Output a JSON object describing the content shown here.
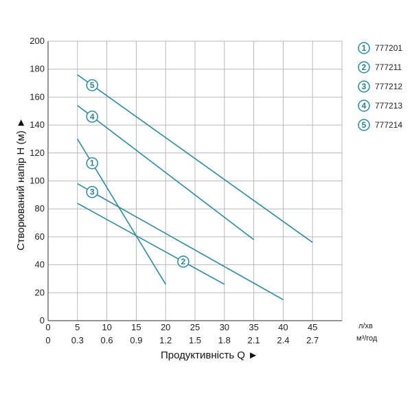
{
  "chart_data": {
    "type": "line",
    "xlabel": "Продуктивність Q ►",
    "ylabel": "Створюваний напір H (м) ►",
    "x_unit_primary": "л/хв",
    "x_unit_secondary": "м³/год",
    "xlim": [
      0,
      50
    ],
    "ylim": [
      0,
      200
    ],
    "x_ticks_primary": [
      "0",
      "5",
      "10",
      "15",
      "20",
      "25",
      "30",
      "35",
      "40",
      "45"
    ],
    "x_ticks_secondary": [
      "0",
      "0.3",
      "0.6",
      "0.9",
      "1.2",
      "1.5",
      "1.8",
      "2.1",
      "2.4",
      "2.7"
    ],
    "y_ticks": [
      "0",
      "20",
      "40",
      "60",
      "80",
      "100",
      "120",
      "140",
      "160",
      "180",
      "200"
    ],
    "grid": true,
    "legend_position": "right",
    "line_color": "#2b8aa0",
    "series": [
      {
        "name": "777201",
        "marker": "1",
        "marker_x": 7.5,
        "points": [
          [
            5,
            130
          ],
          [
            20,
            26
          ]
        ]
      },
      {
        "name": "777211",
        "marker": "2",
        "marker_x": 23,
        "points": [
          [
            5,
            84
          ],
          [
            30,
            26
          ]
        ]
      },
      {
        "name": "777212",
        "marker": "3",
        "marker_x": 7.5,
        "points": [
          [
            5,
            98
          ],
          [
            40,
            15
          ]
        ]
      },
      {
        "name": "777213",
        "marker": "4",
        "marker_x": 7.5,
        "points": [
          [
            5,
            154
          ],
          [
            35,
            58
          ]
        ]
      },
      {
        "name": "777214",
        "marker": "5",
        "marker_x": 7.5,
        "points": [
          [
            5,
            176
          ],
          [
            45,
            56
          ]
        ]
      }
    ]
  }
}
